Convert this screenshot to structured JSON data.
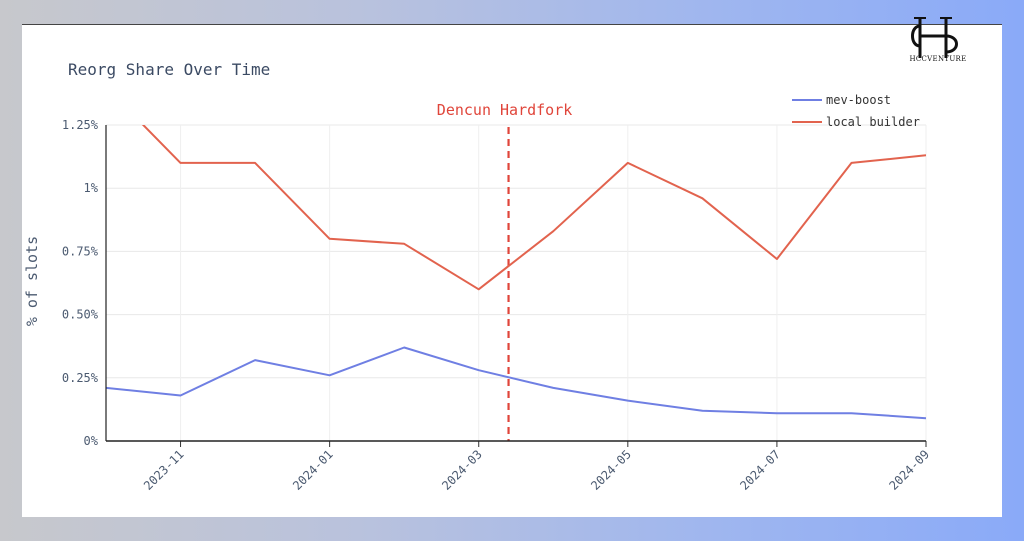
{
  "logo": {
    "text": "HCCVENTURE"
  },
  "chart_data": {
    "type": "line",
    "title": "Reorg Share Over Time",
    "xlabel": "",
    "ylabel": "% of slots",
    "x": [
      "2023-10",
      "2023-11",
      "2023-12",
      "2024-01",
      "2024-02",
      "2024-03",
      "2024-04",
      "2024-05",
      "2024-06",
      "2024-07",
      "2024-08",
      "2024-09"
    ],
    "x_tick_labels": [
      "2023-11",
      "2024-01",
      "2024-03",
      "2024-05",
      "2024-07",
      "2024-09"
    ],
    "y_tick_labels": [
      "0%",
      "0.25%",
      "0.50%",
      "0.75%",
      "1%",
      "1.25%"
    ],
    "ylim": [
      0,
      1.25
    ],
    "series": [
      {
        "name": "mev-boost",
        "color": "#6f7fe3",
        "values": [
          0.21,
          0.18,
          0.32,
          0.26,
          0.37,
          0.28,
          0.21,
          0.16,
          0.12,
          0.11,
          0.11,
          0.09
        ]
      },
      {
        "name": "local builder",
        "color": "#e2634e",
        "values": [
          1.4,
          1.1,
          1.1,
          0.8,
          0.78,
          0.6,
          0.83,
          1.1,
          0.96,
          0.72,
          1.1,
          1.13
        ]
      }
    ],
    "annotation": {
      "label": "Dencun Hardfork",
      "x": "2024-03-13",
      "color": "#e0453a"
    },
    "grid": true,
    "legend_position": "top-right"
  }
}
